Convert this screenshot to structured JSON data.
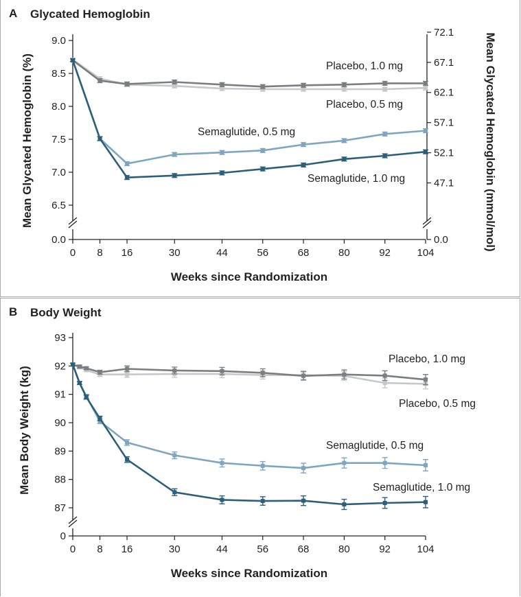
{
  "chart_data": [
    {
      "type": "line",
      "panel_label": "A",
      "title": "Glycated Hemoglobin",
      "xlabel": "Weeks since Randomization",
      "ylabel": "Mean Glycated Hemoglobin (%)",
      "y2label": "Mean Glycated Hemoglobin (mmol/mol)",
      "xlim": [
        0,
        104
      ],
      "ylim": [
        6.5,
        9.0
      ],
      "x_ticks": [
        0,
        8,
        16,
        30,
        44,
        56,
        68,
        80,
        92,
        104
      ],
      "y_ticks": [
        6.5,
        7.0,
        7.5,
        8.0,
        8.5,
        9.0
      ],
      "y_tick_labels": [
        "6.5",
        "7.0",
        "7.5",
        "8.0",
        "8.5",
        "9.0"
      ],
      "y_zero_label": "0.0",
      "y2_tick_values": [
        6.838,
        7.296,
        7.753,
        8.211,
        8.668
      ],
      "y2_tick_labels": [
        "47.1",
        "52.1",
        "57.1",
        "62.1",
        "67.1",
        "72.1"
      ],
      "y2_zero_label": "0.0",
      "y2_top_value": 9.126,
      "series": [
        {
          "name": "Placebo, 0.5 mg",
          "color": "#c6c8cb",
          "x": [
            0,
            8,
            16,
            30,
            44,
            56,
            68,
            80,
            92,
            104
          ],
          "values": [
            8.71,
            8.42,
            8.33,
            8.31,
            8.27,
            8.26,
            8.26,
            8.26,
            8.26,
            8.28
          ],
          "err": [
            0.02,
            0.03,
            0.03,
            0.03,
            0.03,
            0.03,
            0.03,
            0.03,
            0.03,
            0.03
          ]
        },
        {
          "name": "Placebo, 1.0 mg",
          "color": "#7b7d80",
          "x": [
            0,
            8,
            16,
            30,
            44,
            56,
            68,
            80,
            92,
            104
          ],
          "values": [
            8.7,
            8.39,
            8.34,
            8.37,
            8.33,
            8.3,
            8.32,
            8.33,
            8.35,
            8.35
          ],
          "err": [
            0.02,
            0.03,
            0.03,
            0.03,
            0.03,
            0.03,
            0.03,
            0.03,
            0.03,
            0.03
          ]
        },
        {
          "name": "Semaglutide, 0.5 mg",
          "color": "#7ea6bf",
          "x": [
            0,
            8,
            16,
            30,
            44,
            56,
            68,
            80,
            92,
            104
          ],
          "values": [
            8.7,
            7.51,
            7.13,
            7.27,
            7.3,
            7.33,
            7.42,
            7.48,
            7.58,
            7.63
          ],
          "err": [
            0.02,
            0.03,
            0.03,
            0.03,
            0.03,
            0.03,
            0.03,
            0.03,
            0.03,
            0.03
          ]
        },
        {
          "name": "Semaglutide, 1.0 mg",
          "color": "#2b5f7a",
          "x": [
            0,
            8,
            16,
            30,
            44,
            56,
            68,
            80,
            92,
            104
          ],
          "values": [
            8.7,
            7.51,
            6.92,
            6.95,
            6.99,
            7.05,
            7.11,
            7.2,
            7.25,
            7.31
          ],
          "err": [
            0.02,
            0.03,
            0.03,
            0.03,
            0.03,
            0.03,
            0.03,
            0.03,
            0.03,
            0.03
          ]
        }
      ]
    },
    {
      "type": "line",
      "panel_label": "B",
      "title": "Body Weight",
      "xlabel": "Weeks since Randomization",
      "ylabel": "Mean Body Weight (kg)",
      "xlim": [
        0,
        104
      ],
      "ylim": [
        87,
        93
      ],
      "x_ticks": [
        0,
        8,
        16,
        30,
        44,
        56,
        68,
        80,
        92,
        104
      ],
      "y_ticks": [
        87,
        88,
        89,
        90,
        91,
        92,
        93
      ],
      "y_tick_labels": [
        "87",
        "88",
        "89",
        "90",
        "91",
        "92",
        "93"
      ],
      "y_zero_label": "0",
      "series": [
        {
          "name": "Placebo, 0.5 mg",
          "color": "#c6c8cb",
          "x": [
            0,
            2,
            4,
            8,
            16,
            30,
            44,
            56,
            68,
            80,
            92,
            104
          ],
          "values": [
            92.05,
            91.95,
            91.85,
            91.7,
            91.7,
            91.72,
            91.72,
            91.68,
            91.68,
            91.65,
            91.4,
            91.37
          ],
          "err": [
            0.05,
            0.05,
            0.05,
            0.07,
            0.1,
            0.12,
            0.13,
            0.14,
            0.15,
            0.16,
            0.17,
            0.18
          ]
        },
        {
          "name": "Placebo, 1.0 mg",
          "color": "#7b7d80",
          "x": [
            0,
            2,
            4,
            8,
            16,
            30,
            44,
            56,
            68,
            80,
            92,
            104
          ],
          "values": [
            92.05,
            91.98,
            91.92,
            91.78,
            91.9,
            91.84,
            91.82,
            91.76,
            91.65,
            91.7,
            91.66,
            91.52
          ],
          "err": [
            0.05,
            0.05,
            0.05,
            0.07,
            0.1,
            0.12,
            0.13,
            0.14,
            0.15,
            0.16,
            0.17,
            0.18
          ]
        },
        {
          "name": "Semaglutide, 0.5 mg",
          "color": "#7ea6bf",
          "x": [
            0,
            2,
            4,
            8,
            16,
            30,
            44,
            56,
            68,
            80,
            92,
            104
          ],
          "values": [
            92.05,
            91.4,
            90.93,
            90.05,
            89.3,
            88.85,
            88.58,
            88.48,
            88.4,
            88.58,
            88.58,
            88.5
          ],
          "err": [
            0.05,
            0.05,
            0.07,
            0.08,
            0.1,
            0.12,
            0.14,
            0.15,
            0.17,
            0.18,
            0.19,
            0.2
          ]
        },
        {
          "name": "Semaglutide, 1.0 mg",
          "color": "#2b5f7a",
          "x": [
            0,
            2,
            4,
            8,
            16,
            30,
            44,
            56,
            68,
            80,
            92,
            104
          ],
          "values": [
            92.05,
            91.4,
            90.9,
            90.15,
            88.7,
            87.55,
            87.28,
            87.24,
            87.25,
            87.12,
            87.17,
            87.2
          ],
          "err": [
            0.05,
            0.05,
            0.07,
            0.08,
            0.1,
            0.12,
            0.14,
            0.15,
            0.17,
            0.18,
            0.19,
            0.2
          ]
        }
      ]
    }
  ]
}
